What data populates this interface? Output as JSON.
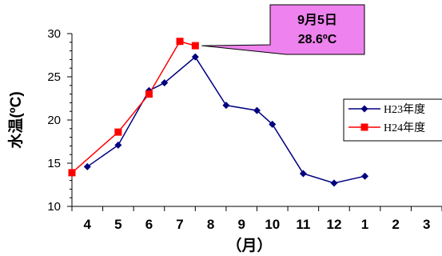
{
  "chart_data": {
    "type": "line",
    "ylabel": "水温(ºC)",
    "xlabel": "（月）",
    "ylim": [
      10,
      30
    ],
    "yticks": [
      10,
      15,
      20,
      25,
      30
    ],
    "categories": [
      "4",
      "5",
      "6",
      "7",
      "8",
      "9",
      "10",
      "11",
      "12",
      "1",
      "2",
      "3"
    ],
    "grid": false,
    "legend_position": "right",
    "series": [
      {
        "name": "H23年度",
        "color": "#000080",
        "marker": "diamond",
        "points": [
          {
            "x": 4.5,
            "y": 14.6
          },
          {
            "x": 5.5,
            "y": 17.1
          },
          {
            "x": 6.5,
            "y": 23.4
          },
          {
            "x": 7.0,
            "y": 24.3
          },
          {
            "x": 8.0,
            "y": 27.3
          },
          {
            "x": 9.0,
            "y": 21.7
          },
          {
            "x": 10.0,
            "y": 21.1
          },
          {
            "x": 10.5,
            "y": 19.5
          },
          {
            "x": 11.5,
            "y": 13.8
          },
          {
            "x": 12.5,
            "y": 12.7
          },
          {
            "x": 13.5,
            "y": 13.5
          }
        ]
      },
      {
        "name": "H24年度",
        "color": "#ff0000",
        "marker": "square",
        "points": [
          {
            "x": 4.0,
            "y": 13.9
          },
          {
            "x": 5.5,
            "y": 18.6
          },
          {
            "x": 6.5,
            "y": 23.0
          },
          {
            "x": 7.5,
            "y": 29.1
          },
          {
            "x": 8.0,
            "y": 28.6
          }
        ]
      }
    ],
    "annotation": {
      "lines": [
        "9月5日",
        "28.6ºC"
      ],
      "fill": "#ee82ee",
      "points_to": {
        "series": 1,
        "index": 4
      }
    }
  }
}
